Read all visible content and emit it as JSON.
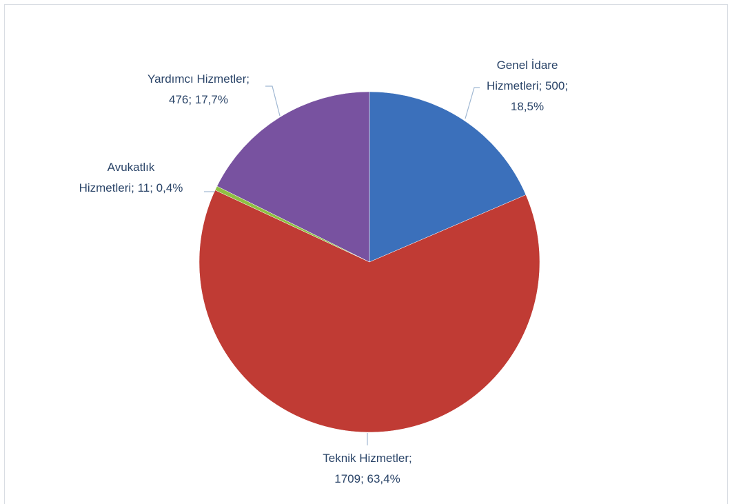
{
  "chart_data": {
    "type": "pie",
    "values": [
      500,
      1709,
      11,
      476
    ],
    "value_labels": [
      "Genel İdare\nHizmetleri; 500;\n18,5%",
      "Teknik Hizmetler;\n1709; 63,4%",
      "Avukatlık\nHizmetleri; 11; 0,4%",
      "Yardımcı Hizmetler;\n476; 17,7%"
    ],
    "colors": [
      "#3b70bb",
      "#c03b34",
      "#8fc042",
      "#7852a0"
    ]
  }
}
